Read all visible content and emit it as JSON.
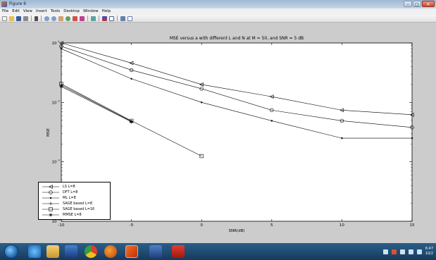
{
  "window": {
    "title": "Figure 6",
    "caption": "",
    "controls": {
      "minimize": "–",
      "maximize": "□",
      "close": "✕"
    }
  },
  "menu": [
    "File",
    "Edit",
    "View",
    "Insert",
    "Tools",
    "Desktop",
    "Window",
    "Help"
  ],
  "toolbar_icons": [
    "new-figure-icon",
    "open-file-icon",
    "save-icon",
    "print-icon",
    "pointer-icon",
    "zoom-in-icon",
    "zoom-out-icon",
    "pan-icon",
    "rotate-icon",
    "data-cursor-icon",
    "brush-icon",
    "link-icon",
    "colorbar-icon",
    "legend-icon",
    "hide-plot-tools-icon",
    "show-plot-tools-icon"
  ],
  "chart_data": {
    "type": "line",
    "title": "MSE versus a with different L and N at M = 50, and SNR = 5 dB",
    "xlabel": "SNR(dB)",
    "ylabel": "MSE",
    "xlim": [
      -10,
      15
    ],
    "ylim": [
      0.0001,
      0.1
    ],
    "yscale": "log",
    "grid": false,
    "legend_position": "bottom-left",
    "x_ticks": [
      "-10",
      "-5",
      "0",
      "5",
      "10",
      "15"
    ],
    "y_ticks": [
      {
        "value": 0.1,
        "base": "10",
        "exp": "-1"
      },
      {
        "value": 0.01,
        "base": "10",
        "exp": "-2"
      },
      {
        "value": 0.001,
        "base": "10",
        "exp": "-3"
      },
      {
        "value": 0.0001,
        "base": "10",
        "exp": "-4"
      }
    ],
    "series": [
      {
        "name": "LS L=8",
        "marker": "triangle-left",
        "x": [
          -10,
          -5,
          0,
          5,
          10,
          15
        ],
        "y": [
          0.1,
          0.046,
          0.02,
          0.0125,
          0.0074,
          0.0062
        ]
      },
      {
        "name": "DFT L=8",
        "marker": "circle",
        "x": [
          -10,
          -5,
          0,
          5,
          10,
          15
        ],
        "y": [
          0.088,
          0.035,
          0.017,
          0.0074,
          0.0049,
          0.0038
        ]
      },
      {
        "name": "ML L=8",
        "marker": "dot",
        "x": [
          -10,
          -5,
          0,
          5,
          10,
          15
        ],
        "y": [
          0.08,
          0.025,
          0.01,
          0.0049,
          0.0025,
          0.0025
        ]
      },
      {
        "name": "SAGE based L=8",
        "marker": "plus",
        "x": [
          -10,
          -5
        ],
        "y": [
          0.0195,
          0.0048
        ]
      },
      {
        "name": "SAGE based L=16",
        "marker": "square",
        "x": [
          -10,
          -5,
          0
        ],
        "y": [
          0.0205,
          0.0049,
          0.00125
        ]
      },
      {
        "name": "MMSE L=8",
        "marker": "asterisk",
        "x": [
          -10,
          -5
        ],
        "y": [
          0.0185,
          0.0047
        ]
      }
    ]
  },
  "taskbar": {
    "apps": [
      "ie-icon",
      "explorer-icon",
      "media-player-icon",
      "chrome-icon",
      "firefox-icon",
      "matlab-icon",
      "word-icon",
      "acrobat-icon"
    ],
    "clock_time": "6:47",
    "clock_date": "10/2"
  }
}
